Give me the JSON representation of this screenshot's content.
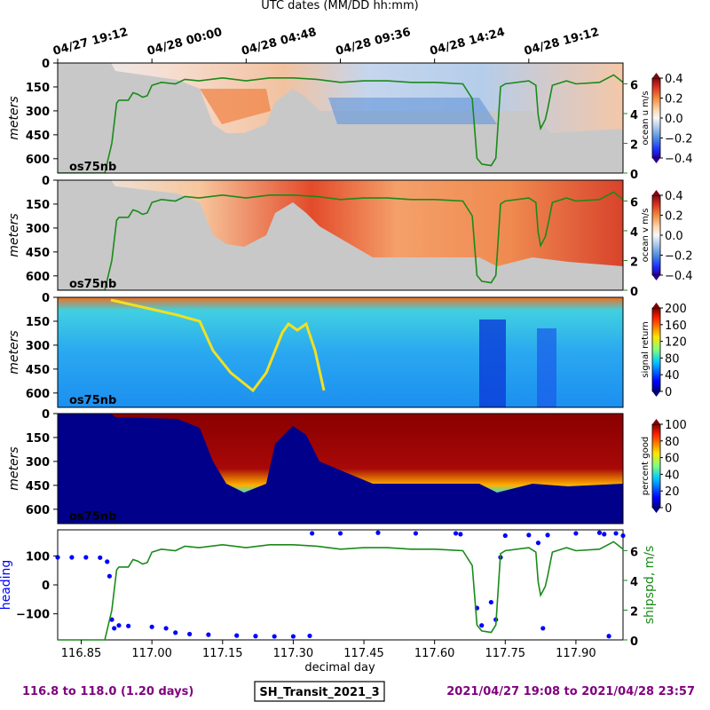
{
  "figure": {
    "top_axis_label": "UTC dates (MM/DD hh:mm)",
    "top_ticks": [
      {
        "x": 116.8,
        "label": "04/27 19:12"
      },
      {
        "x": 117.0,
        "label": "04/28 00:00"
      },
      {
        "x": 117.2,
        "label": "04/28 04:48"
      },
      {
        "x": 117.4,
        "label": "04/28 09:36"
      },
      {
        "x": 117.6,
        "label": "04/28 14:24"
      },
      {
        "x": 117.8,
        "label": "04/28 19:12"
      }
    ],
    "instrument_tag": "os75nb",
    "depth_axis_label": "meters",
    "depth_ticks": [
      "0",
      "150",
      "300",
      "450",
      "600"
    ],
    "bottom_axis_label": "decimal day",
    "bottom_ticks": [
      "116.85",
      "117.00",
      "117.15",
      "117.30",
      "117.45",
      "117.60",
      "117.75",
      "117.90"
    ],
    "footer_left": "116.8 to 118.0 (1.20 days)",
    "footer_center": "SH_Transit_2021_3",
    "footer_right": "2021/04/27 19:08 to 2021/04/28 23:57",
    "footer_color": "#800080"
  },
  "chart_data": [
    {
      "type": "heatmap",
      "panel": "ocean u",
      "ylabel": "meters",
      "colorbar_label": "ocean u m/s",
      "colorbar_ticks": [
        "0.4",
        "0.2",
        "0.0",
        "−0.2",
        "−0.4"
      ],
      "clim": [
        -0.4,
        0.4
      ],
      "xlim": [
        116.8,
        118.0
      ],
      "ylim": [
        690,
        0
      ],
      "right_axis_ticks": [
        "0",
        "2",
        "4",
        "6"
      ],
      "right_axis_color": "#1a8a1a",
      "overlay": "ship speed (m/s)"
    },
    {
      "type": "heatmap",
      "panel": "ocean v",
      "ylabel": "meters",
      "colorbar_label": "ocean v m/s",
      "colorbar_ticks": [
        "0.4",
        "0.2",
        "0.0",
        "−0.2",
        "−0.4"
      ],
      "clim": [
        -0.4,
        0.4
      ],
      "xlim": [
        116.8,
        118.0
      ],
      "ylim": [
        690,
        0
      ],
      "right_axis_ticks": [
        "0",
        "2",
        "4",
        "6"
      ],
      "right_axis_color": "#1a8a1a",
      "overlay": "ship speed (m/s)"
    },
    {
      "type": "heatmap",
      "panel": "signal return",
      "ylabel": "meters",
      "colorbar_label": "signal return",
      "colorbar_ticks": [
        "200",
        "160",
        "120",
        "80",
        "40",
        "0"
      ],
      "clim": [
        0,
        200
      ],
      "xlim": [
        116.8,
        118.0
      ],
      "ylim": [
        690,
        0
      ]
    },
    {
      "type": "heatmap",
      "panel": "percent good",
      "ylabel": "meters",
      "colorbar_label": "percent good",
      "colorbar_ticks": [
        "100",
        "80",
        "60",
        "40",
        "20",
        "0"
      ],
      "clim": [
        0,
        100
      ],
      "xlim": [
        116.8,
        118.0
      ],
      "ylim": [
        690,
        0
      ]
    },
    {
      "type": "line",
      "panel": "heading and ship speed",
      "xlabel": "decimal day",
      "xlim": [
        116.8,
        118.0
      ],
      "series": [
        {
          "name": "heading",
          "axis": "left",
          "color": "#0000ff",
          "style": "dots",
          "ylim": [
            -190,
            190
          ],
          "ticks": [
            "100",
            "0",
            "−100"
          ],
          "points": [
            [
              116.8,
              95
            ],
            [
              116.83,
              95
            ],
            [
              116.86,
              95
            ],
            [
              116.89,
              94
            ],
            [
              116.905,
              80
            ],
            [
              116.91,
              30
            ],
            [
              116.915,
              -120
            ],
            [
              116.92,
              -150
            ],
            [
              116.93,
              -140
            ],
            [
              116.95,
              -142
            ],
            [
              117.0,
              -145
            ],
            [
              117.03,
              -150
            ],
            [
              117.05,
              -165
            ],
            [
              117.08,
              -170
            ],
            [
              117.12,
              -172
            ],
            [
              117.18,
              -175
            ],
            [
              117.22,
              -177
            ],
            [
              117.26,
              -178
            ],
            [
              117.3,
              -178
            ],
            [
              117.335,
              -176
            ],
            [
              117.34,
              178
            ],
            [
              117.4,
              178
            ],
            [
              117.48,
              180
            ],
            [
              117.56,
              178
            ],
            [
              117.645,
              178
            ],
            [
              117.655,
              175
            ],
            [
              117.69,
              -80
            ],
            [
              117.7,
              -140
            ],
            [
              117.72,
              -60
            ],
            [
              117.73,
              -120
            ],
            [
              117.74,
              95
            ],
            [
              117.75,
              170
            ],
            [
              117.8,
              172
            ],
            [
              117.82,
              145
            ],
            [
              117.83,
              -150
            ],
            [
              117.84,
              172
            ],
            [
              117.9,
              178
            ],
            [
              117.95,
              180
            ],
            [
              117.96,
              175
            ],
            [
              117.97,
              -177
            ],
            [
              117.985,
              178
            ],
            [
              118.0,
              170
            ]
          ]
        },
        {
          "name": "shipspd, m/s",
          "axis": "right",
          "color": "#1a8a1a",
          "style": "line",
          "ylim": [
            0,
            7.4
          ],
          "ticks": [
            "0",
            "2",
            "4",
            "6"
          ],
          "points": [
            [
              116.8,
              0
            ],
            [
              116.9,
              0
            ],
            [
              116.915,
              2
            ],
            [
              116.925,
              4.7
            ],
            [
              116.93,
              4.9
            ],
            [
              116.95,
              4.9
            ],
            [
              116.96,
              5.4
            ],
            [
              116.97,
              5.3
            ],
            [
              116.98,
              5.1
            ],
            [
              116.99,
              5.2
            ],
            [
              117.0,
              5.9
            ],
            [
              117.02,
              6.1
            ],
            [
              117.05,
              6.0
            ],
            [
              117.07,
              6.3
            ],
            [
              117.1,
              6.2
            ],
            [
              117.15,
              6.4
            ],
            [
              117.2,
              6.2
            ],
            [
              117.25,
              6.4
            ],
            [
              117.3,
              6.4
            ],
            [
              117.35,
              6.3
            ],
            [
              117.4,
              6.1
            ],
            [
              117.45,
              6.2
            ],
            [
              117.5,
              6.2
            ],
            [
              117.55,
              6.1
            ],
            [
              117.6,
              6.1
            ],
            [
              117.66,
              6.0
            ],
            [
              117.68,
              5.0
            ],
            [
              117.69,
              1.0
            ],
            [
              117.7,
              0.6
            ],
            [
              117.72,
              0.5
            ],
            [
              117.73,
              1.0
            ],
            [
              117.74,
              5.8
            ],
            [
              117.75,
              6.0
            ],
            [
              117.8,
              6.2
            ],
            [
              117.815,
              5.9
            ],
            [
              117.82,
              3.9
            ],
            [
              117.825,
              3.0
            ],
            [
              117.83,
              3.3
            ],
            [
              117.835,
              3.6
            ],
            [
              117.84,
              4.3
            ],
            [
              117.85,
              5.9
            ],
            [
              117.88,
              6.2
            ],
            [
              117.9,
              6.0
            ],
            [
              117.95,
              6.1
            ],
            [
              117.98,
              6.6
            ],
            [
              118.0,
              6.1
            ]
          ]
        }
      ]
    }
  ]
}
